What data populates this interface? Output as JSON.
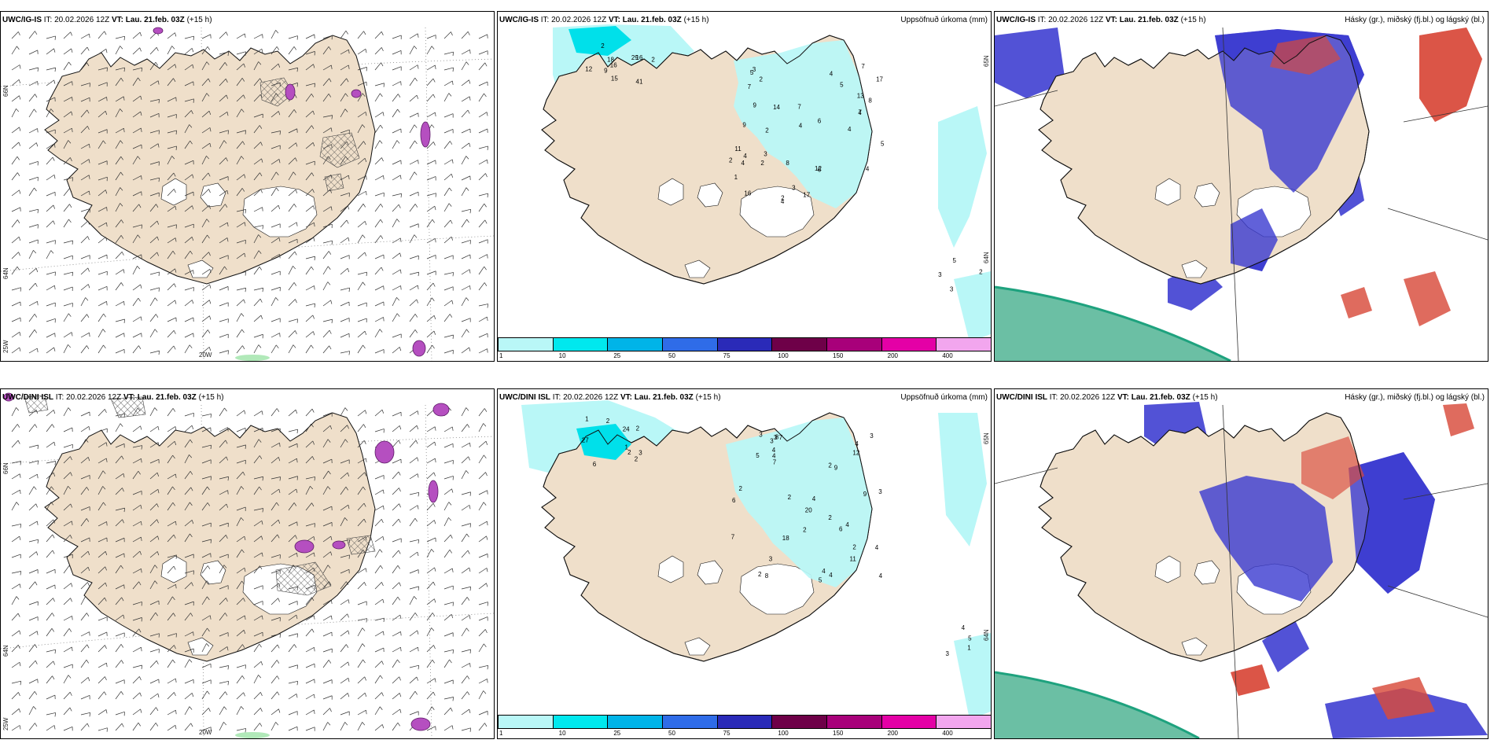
{
  "panels": [
    {
      "model": "UWC/IG-IS",
      "it_label": "IT:",
      "it": "20.02.2026 12Z",
      "vt_label": "VT:",
      "vt": "Lau. 21.feb. 03Z",
      "lead": "(+15 h)",
      "title_right": "",
      "type": "wind",
      "lat_labels": [
        "66N",
        "64N",
        "25W"
      ],
      "lon_labels": [
        "20W"
      ]
    },
    {
      "model": "UWC/IG-IS",
      "it_label": "IT:",
      "it": "20.02.2026 12Z",
      "vt_label": "VT:",
      "vt": "Lau. 21.feb. 03Z",
      "lead": "(+15 h)",
      "title_right": "Uppsöfnuð úrkoma (mm)",
      "type": "precip",
      "lat_labels": [
        "65N",
        "64N"
      ],
      "lon_labels": [],
      "numbers": [
        "29",
        "41",
        "16",
        "16",
        "15",
        "2",
        "18",
        "12",
        "9",
        "2",
        "2",
        "2",
        "2",
        "8",
        "16",
        "17",
        "6",
        "7",
        "9",
        "6",
        "12",
        "7",
        "3",
        "4",
        "8",
        "4",
        "3",
        "9",
        "7",
        "13",
        "7",
        "17",
        "4",
        "5",
        "4",
        "14",
        "5",
        "11",
        "2",
        "4",
        "4",
        "4",
        "5",
        "2",
        "4",
        "1",
        "3",
        "3",
        "3",
        "5",
        "2"
      ]
    },
    {
      "model": "UWC/IG-IS",
      "it_label": "IT:",
      "it": "20.02.2026 12Z",
      "vt_label": "VT:",
      "vt": "Lau. 21.feb. 03Z",
      "lead": "(+15 h)",
      "title_right": "Hásky (gr.), miðský (fj.bl.) og lágský (bl.)",
      "type": "clouds"
    },
    {
      "model": "UWC/DINI ISL",
      "it_label": "IT:",
      "it": "20.02.2026 12Z",
      "vt_label": "VT:",
      "vt": "Lau. 21.feb. 03Z",
      "lead": "(+15 h)",
      "title_right": "",
      "type": "wind",
      "lat_labels": [
        "66N",
        "64N",
        "25W"
      ],
      "lon_labels": [
        "20W"
      ]
    },
    {
      "model": "UWC/DINI ISL",
      "it_label": "IT:",
      "it": "20.02.2026 12Z",
      "vt_label": "VT:",
      "vt": "Lau. 21.feb. 03Z",
      "lead": "(+15 h)",
      "title_right": "Uppsöfnuð úrkoma (mm)",
      "type": "precip",
      "lat_labels": [
        "65N",
        "64N"
      ],
      "lon_labels": [],
      "numbers": [
        "2",
        "2",
        "2",
        "2",
        "1",
        "1",
        "3",
        "6",
        "24",
        "27",
        "18",
        "7",
        "6",
        "4",
        "3",
        "2",
        "4",
        "2",
        "11",
        "9",
        "2",
        "8",
        "8",
        "9",
        "6",
        "3",
        "3",
        "7",
        "3",
        "4",
        "20",
        "2",
        "2",
        "4",
        "4",
        "4",
        "12",
        "2",
        "7",
        "4",
        "3",
        "2",
        "4",
        "4",
        "5",
        "5",
        "3",
        "5",
        "1",
        "3",
        "4"
      ]
    },
    {
      "model": "UWC/DINI ISL",
      "it_label": "IT:",
      "it": "20.02.2026 12Z",
      "vt_label": "VT:",
      "vt": "Lau. 21.feb. 03Z",
      "lead": "(+15 h)",
      "title_right": "Hásky (gr.), miðský (fj.bl.) og lágský (bl.)",
      "type": "clouds"
    }
  ],
  "colorbar": {
    "ticks": [
      "1",
      "10",
      "25",
      "50",
      "75",
      "100",
      "150",
      "200",
      "400"
    ],
    "colors": [
      "#b9f7f7",
      "#00e8ee",
      "#00b4e8",
      "#2f6ce8",
      "#2a2ab8",
      "#6e0048",
      "#a8007a",
      "#e400a6",
      "#f2a6ee"
    ]
  },
  "colors": {
    "land": "#efdfca",
    "glacier": "#ffffff",
    "coast": "#111111",
    "precip_light": "#b9f7f7",
    "precip_cyan": "#00e0ea",
    "cloud_low": "#3a3ad0",
    "cloud_mid": "#d84a3a",
    "cloud_high": "#2aa080"
  }
}
